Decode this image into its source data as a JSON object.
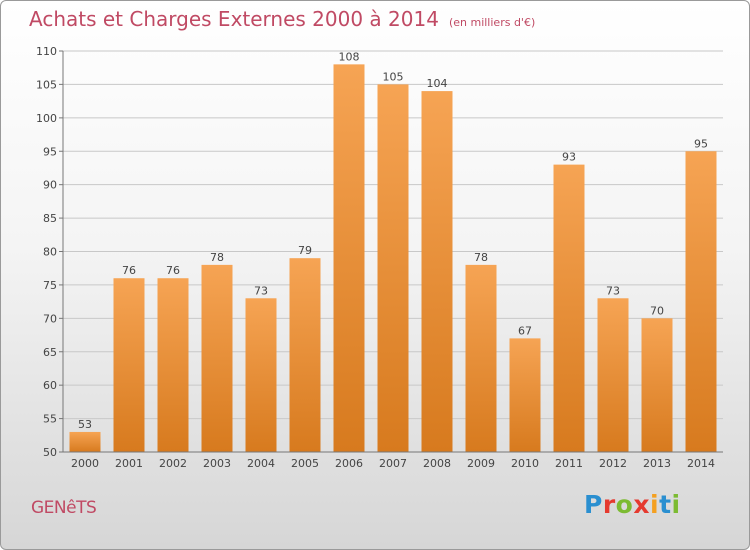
{
  "header": {
    "title": "Achats et Charges Externes 2000 à 2014",
    "subtitle": "(en milliers d'€)"
  },
  "footer": {
    "commune": "GENêTS",
    "brand_letters": [
      "P",
      "r",
      "o",
      "x",
      "i",
      "t",
      "i"
    ],
    "brand_colors": [
      "#2a8fd0",
      "#e53a2f",
      "#7cbb32",
      "#e53a2f",
      "#f4a020",
      "#2a8fd0",
      "#7cbb32"
    ]
  },
  "chart_data": {
    "type": "bar",
    "title": "Achats et Charges Externes 2000 à 2014",
    "subtitle": "(en milliers d'€)",
    "categories": [
      "2000",
      "2001",
      "2002",
      "2003",
      "2004",
      "2005",
      "2006",
      "2007",
      "2008",
      "2009",
      "2010",
      "2011",
      "2012",
      "2013",
      "2014"
    ],
    "values": [
      53,
      76,
      76,
      78,
      73,
      79,
      108,
      105,
      104,
      78,
      67,
      93,
      73,
      70,
      95
    ],
    "ylim": [
      50,
      110
    ],
    "yticks": [
      50,
      55,
      60,
      65,
      70,
      75,
      80,
      85,
      90,
      95,
      100,
      105,
      110
    ],
    "grid": true,
    "colors": {
      "bar_light": "#f6a454",
      "bar_dark": "#d77a1e",
      "grid": "#c8c8c8",
      "axis_text": "#444444"
    }
  }
}
